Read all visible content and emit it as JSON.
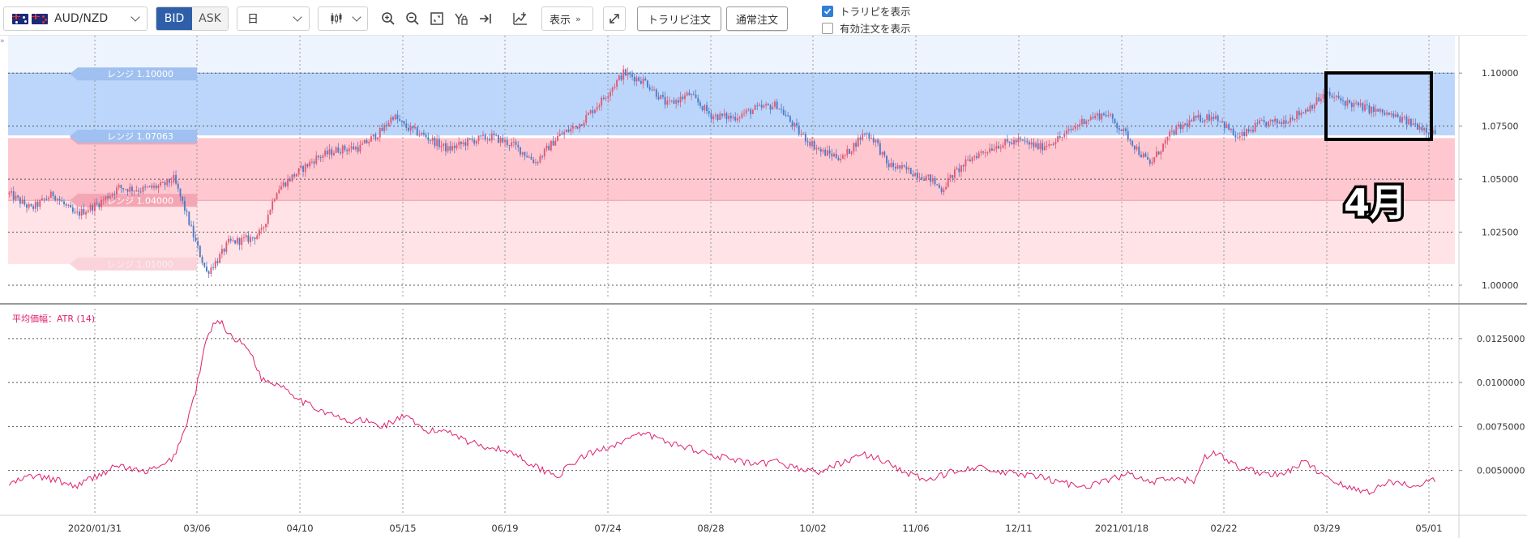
{
  "toolbar": {
    "symbol": "AUD/NZD",
    "bid_label": "BID",
    "ask_label": "ASK",
    "period": "日",
    "display_label": "表示",
    "trap_order_label": "トラリピ注文",
    "normal_order_label": "通常注文",
    "show_trap_label": "トラリピを表示",
    "show_active_orders_label": "有効注文を表示",
    "show_trap_checked": true,
    "show_active_orders_checked": false
  },
  "colors": {
    "up_candle": "#e05b74",
    "down_candle": "#4f7bc6",
    "range_blue": "#bcd6fb",
    "range_pink": "#ffc8d0",
    "range_pink_light": "#ffe3e6",
    "atr_line": "#e0206e",
    "accent": "#2f5fa8"
  },
  "annotation": {
    "text": "4月"
  },
  "chart_data": [
    {
      "type": "candlestick",
      "y_ticks": [
        "1.10000",
        "1.07500",
        "1.05000",
        "1.02500",
        "1.00000"
      ],
      "x_ticks": [
        "2020/01/31",
        "03/06",
        "04/10",
        "05/15",
        "06/19",
        "07/24",
        "08/28",
        "10/02",
        "11/06",
        "12/11",
        "2021/01/18",
        "02/22",
        "03/29",
        "05/01"
      ],
      "ylim": [
        0.9935,
        1.1165
      ],
      "range_labels": [
        {
          "label": "レンジ 1.10000",
          "value": 1.1,
          "color": "blue"
        },
        {
          "label": "レンジ 1.06937",
          "value": 1.06937,
          "color": "pink"
        },
        {
          "label": "レンジ 1.07063",
          "value": 1.07063,
          "color": "blue"
        },
        {
          "label": "レンジ 1.04000",
          "value": 1.04,
          "color": "pink"
        },
        {
          "label": "レンジ 1.01000",
          "value": 1.01,
          "color": "pinklight"
        }
      ],
      "range_bands": [
        {
          "from": 1.07063,
          "to": 1.1,
          "color": "blue"
        },
        {
          "from": 1.04,
          "to": 1.06937,
          "color": "pink"
        },
        {
          "from": 1.01,
          "to": 1.04,
          "color": "pinklight"
        }
      ],
      "close_anchors": [
        [
          0,
          1.043
        ],
        [
          10,
          1.036
        ],
        [
          20,
          1.043
        ],
        [
          30,
          1.033
        ],
        [
          40,
          1.038
        ],
        [
          50,
          1.046
        ],
        [
          60,
          1.045
        ],
        [
          70,
          1.047
        ],
        [
          75,
          1.05
        ],
        [
          80,
          1.036
        ],
        [
          85,
          1.02
        ],
        [
          90,
          1.006
        ],
        [
          95,
          1.012
        ],
        [
          100,
          1.02
        ],
        [
          110,
          1.022
        ],
        [
          115,
          1.025
        ],
        [
          122,
          1.045
        ],
        [
          130,
          1.052
        ],
        [
          140,
          1.06
        ],
        [
          150,
          1.064
        ],
        [
          160,
          1.065
        ],
        [
          170,
          1.073
        ],
        [
          175,
          1.08
        ],
        [
          180,
          1.075
        ],
        [
          190,
          1.07
        ],
        [
          200,
          1.064
        ],
        [
          210,
          1.068
        ],
        [
          220,
          1.07
        ],
        [
          230,
          1.066
        ],
        [
          240,
          1.058
        ],
        [
          250,
          1.07
        ],
        [
          260,
          1.076
        ],
        [
          270,
          1.087
        ],
        [
          280,
          1.1
        ],
        [
          290,
          1.096
        ],
        [
          300,
          1.085
        ],
        [
          310,
          1.09
        ],
        [
          320,
          1.08
        ],
        [
          330,
          1.079
        ],
        [
          340,
          1.083
        ],
        [
          350,
          1.085
        ],
        [
          360,
          1.072
        ],
        [
          370,
          1.063
        ],
        [
          380,
          1.06
        ],
        [
          390,
          1.072
        ],
        [
          395,
          1.068
        ],
        [
          400,
          1.057
        ],
        [
          410,
          1.054
        ],
        [
          420,
          1.05
        ],
        [
          425,
          1.045
        ],
        [
          430,
          1.052
        ],
        [
          440,
          1.061
        ],
        [
          450,
          1.066
        ],
        [
          460,
          1.068
        ],
        [
          470,
          1.065
        ],
        [
          480,
          1.07
        ],
        [
          490,
          1.078
        ],
        [
          500,
          1.081
        ],
        [
          510,
          1.07
        ],
        [
          515,
          1.063
        ],
        [
          520,
          1.057
        ],
        [
          530,
          1.072
        ],
        [
          540,
          1.078
        ],
        [
          550,
          1.08
        ],
        [
          560,
          1.069
        ],
        [
          570,
          1.076
        ],
        [
          580,
          1.077
        ],
        [
          590,
          1.082
        ],
        [
          600,
          1.09
        ],
        [
          610,
          1.086
        ],
        [
          620,
          1.083
        ],
        [
          630,
          1.08
        ],
        [
          640,
          1.076
        ],
        [
          650,
          1.072
        ]
      ]
    },
    {
      "type": "line",
      "title": "平均価幅：ATR (14)",
      "y_ticks": [
        "0.0125000",
        "0.0100000",
        "0.0075000",
        "0.0050000"
      ],
      "ylim": [
        0.00245,
        0.0142
      ],
      "anchors": [
        [
          0,
          0.0042
        ],
        [
          10,
          0.0047
        ],
        [
          20,
          0.0045
        ],
        [
          30,
          0.0041
        ],
        [
          40,
          0.0047
        ],
        [
          50,
          0.0053
        ],
        [
          60,
          0.0049
        ],
        [
          70,
          0.0052
        ],
        [
          75,
          0.0058
        ],
        [
          80,
          0.0073
        ],
        [
          85,
          0.0095
        ],
        [
          90,
          0.0125
        ],
        [
          95,
          0.0137
        ],
        [
          100,
          0.0128
        ],
        [
          110,
          0.0118
        ],
        [
          115,
          0.0102
        ],
        [
          125,
          0.0098
        ],
        [
          135,
          0.0088
        ],
        [
          145,
          0.0083
        ],
        [
          155,
          0.0077
        ],
        [
          160,
          0.0079
        ],
        [
          170,
          0.0075
        ],
        [
          180,
          0.0081
        ],
        [
          190,
          0.0072
        ],
        [
          200,
          0.0073
        ],
        [
          210,
          0.0066
        ],
        [
          220,
          0.0063
        ],
        [
          230,
          0.006
        ],
        [
          240,
          0.0052
        ],
        [
          250,
          0.0047
        ],
        [
          260,
          0.0057
        ],
        [
          270,
          0.0062
        ],
        [
          280,
          0.0067
        ],
        [
          290,
          0.0071
        ],
        [
          300,
          0.0066
        ],
        [
          310,
          0.0063
        ],
        [
          320,
          0.0059
        ],
        [
          330,
          0.0056
        ],
        [
          340,
          0.0053
        ],
        [
          350,
          0.0055
        ],
        [
          360,
          0.0051
        ],
        [
          370,
          0.0049
        ],
        [
          380,
          0.0055
        ],
        [
          390,
          0.0059
        ],
        [
          400,
          0.0055
        ],
        [
          410,
          0.0048
        ],
        [
          420,
          0.0044
        ],
        [
          430,
          0.005
        ],
        [
          440,
          0.0052
        ],
        [
          450,
          0.0049
        ],
        [
          460,
          0.0048
        ],
        [
          470,
          0.0046
        ],
        [
          480,
          0.0043
        ],
        [
          490,
          0.0041
        ],
        [
          500,
          0.0044
        ],
        [
          510,
          0.0048
        ],
        [
          520,
          0.0043
        ],
        [
          530,
          0.0045
        ],
        [
          540,
          0.0044
        ],
        [
          545,
          0.0058
        ],
        [
          550,
          0.006
        ],
        [
          560,
          0.0052
        ],
        [
          570,
          0.0049
        ],
        [
          580,
          0.0047
        ],
        [
          590,
          0.0055
        ],
        [
          600,
          0.0047
        ],
        [
          610,
          0.004
        ],
        [
          620,
          0.0038
        ],
        [
          630,
          0.0044
        ],
        [
          640,
          0.0041
        ],
        [
          650,
          0.0045
        ]
      ]
    }
  ]
}
